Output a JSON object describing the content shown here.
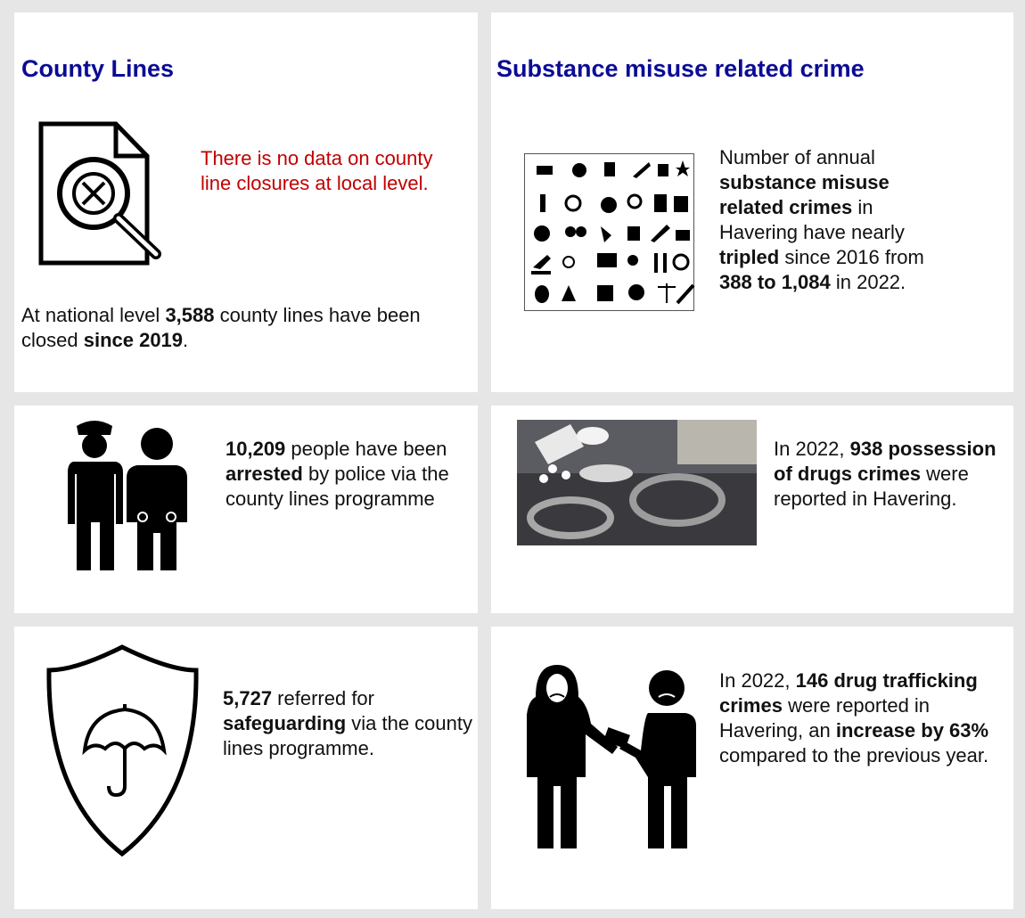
{
  "county_lines": {
    "heading": "County Lines",
    "note": "There is no data on county line closures at local level.",
    "text": {
      "runs": [
        {
          "text": "At national level "
        },
        {
          "text": "3,588",
          "bold": true
        },
        {
          "text": " county lines have been closed "
        },
        {
          "text": "since 2019",
          "bold": true
        },
        {
          "text": "."
        }
      ]
    }
  },
  "substance_crime": {
    "heading": "Substance misuse related crime",
    "text": {
      "runs": [
        {
          "text": "Number of annual "
        },
        {
          "text": "substance misuse related crimes",
          "bold": true
        },
        {
          "text": " in Havering have nearly "
        },
        {
          "text": "tripled",
          "bold": true
        },
        {
          "text": " since 2016 from "
        },
        {
          "text": "388 to 1,084",
          "bold": true
        },
        {
          "text": " in 2022."
        }
      ]
    }
  },
  "arrests": {
    "text": {
      "runs": [
        {
          "text": "10,209",
          "bold": true
        },
        {
          "text": " people have been "
        },
        {
          "text": "arrested",
          "bold": true
        },
        {
          "text": " by police via the county lines programme"
        }
      ]
    }
  },
  "possession": {
    "text": {
      "runs": [
        {
          "text": "In 2022, "
        },
        {
          "text": "938 possession of drugs crimes",
          "bold": true
        },
        {
          "text": " were reported in Havering."
        }
      ]
    }
  },
  "safeguarding": {
    "text": {
      "runs": [
        {
          "text": "5,727",
          "bold": true
        },
        {
          "text": " referred for "
        },
        {
          "text": "safeguarding",
          "bold": true
        },
        {
          "text": " via the county lines programme."
        }
      ]
    }
  },
  "trafficking": {
    "text": {
      "runs": [
        {
          "text": "In 2022, "
        },
        {
          "text": "146 drug trafficking crimes",
          "bold": true
        },
        {
          "text": " were reported in Havering, an "
        },
        {
          "text": "increase by 63%",
          "bold": true
        },
        {
          "text": " compared to the previous year."
        }
      ]
    }
  }
}
